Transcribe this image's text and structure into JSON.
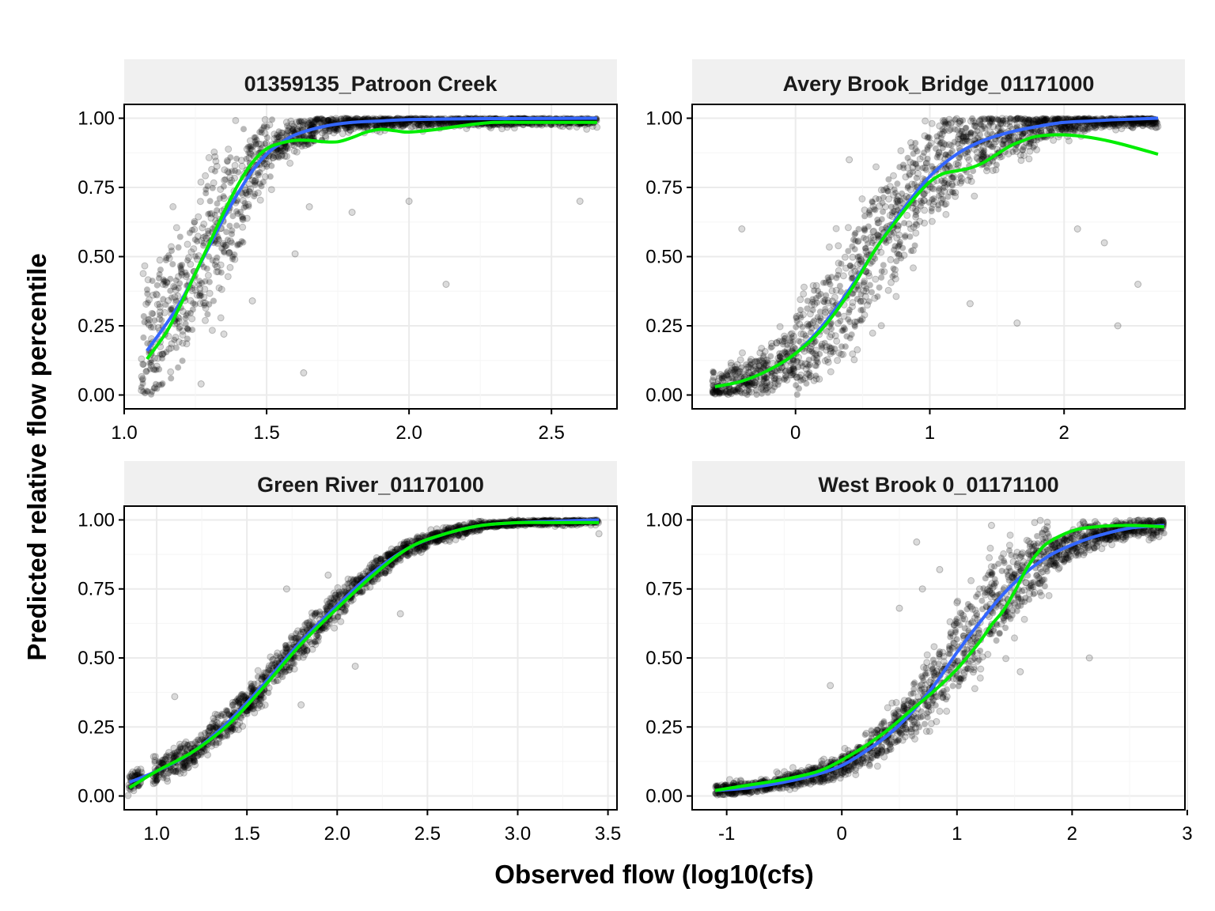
{
  "chart_data": {
    "type": "scatter",
    "xlabel": "Observed flow (log10(cfs)",
    "ylabel": "Predicted relative flow percentile",
    "colors": {
      "points": "#000000",
      "line_blue": "#3366FF",
      "line_green": "#00EE00",
      "strip_background": "#F0F0F0",
      "grid": "#EBEBEB"
    },
    "panels": [
      {
        "title": "01359135_Patroon Creek",
        "xlim": [
          1.0,
          2.73
        ],
        "ylim": [
          -0.05,
          1.05
        ],
        "x_ticks": [
          1.0,
          1.5,
          2.0,
          2.5
        ],
        "x_tick_labels": [
          "1.0",
          "1.5",
          "2.0",
          "2.5"
        ],
        "y_ticks": [
          0.0,
          0.25,
          0.5,
          0.75,
          1.0
        ],
        "y_tick_labels": [
          "0.00",
          "0.25",
          "0.50",
          "0.75",
          "1.00"
        ],
        "blue_line": {
          "x": [
            1.08,
            1.15,
            1.2,
            1.25,
            1.3,
            1.35,
            1.4,
            1.45,
            1.5,
            1.55,
            1.6,
            1.7,
            1.8,
            1.9,
            2.0,
            2.2,
            2.4,
            2.66
          ],
          "y": [
            0.16,
            0.26,
            0.34,
            0.44,
            0.54,
            0.64,
            0.73,
            0.81,
            0.87,
            0.91,
            0.94,
            0.97,
            0.985,
            0.99,
            0.995,
            0.998,
            0.999,
            1.0
          ]
        },
        "green_line": {
          "x": [
            1.08,
            1.15,
            1.2,
            1.25,
            1.3,
            1.35,
            1.4,
            1.45,
            1.5,
            1.55,
            1.6,
            1.65,
            1.7,
            1.75,
            1.8,
            1.85,
            1.9,
            1.95,
            2.0,
            2.1,
            2.2,
            2.3,
            2.4,
            2.5,
            2.66
          ],
          "y": [
            0.13,
            0.23,
            0.33,
            0.44,
            0.55,
            0.66,
            0.76,
            0.84,
            0.89,
            0.91,
            0.92,
            0.92,
            0.915,
            0.915,
            0.93,
            0.95,
            0.96,
            0.955,
            0.95,
            0.96,
            0.975,
            0.985,
            0.985,
            0.985,
            0.985
          ]
        },
        "scatter": {
          "bands": [
            [
              1.06,
              1.12,
              0.0,
              0.92
            ],
            [
              1.12,
              1.22,
              0.0,
              0.96
            ],
            [
              1.22,
              1.32,
              0.05,
              1.0
            ],
            [
              1.32,
              1.42,
              0.15,
              1.0
            ],
            [
              1.42,
              1.52,
              0.55,
              1.0
            ],
            [
              1.52,
              1.7,
              0.8,
              1.0
            ],
            [
              1.7,
              2.66,
              0.9,
              1.0
            ]
          ],
          "outliers": [
            [
              1.63,
              0.08
            ],
            [
              2.13,
              0.4
            ],
            [
              1.8,
              0.66
            ],
            [
              2.0,
              0.7
            ],
            [
              2.6,
              0.7
            ],
            [
              1.6,
              0.51
            ],
            [
              1.65,
              0.68
            ],
            [
              1.35,
              0.22
            ],
            [
              1.45,
              0.34
            ],
            [
              1.27,
              0.04
            ]
          ]
        }
      },
      {
        "title": "Avery Brook_Bridge_01171000",
        "xlim": [
          -0.77,
          2.9
        ],
        "ylim": [
          -0.05,
          1.05
        ],
        "x_ticks": [
          0,
          1,
          2
        ],
        "x_tick_labels": [
          "0",
          "1",
          "2"
        ],
        "y_ticks": [
          0.0,
          0.25,
          0.5,
          0.75,
          1.0
        ],
        "y_tick_labels": [
          "0.00",
          "0.25",
          "0.50",
          "0.75",
          "1.00"
        ],
        "blue_line": {
          "x": [
            -0.6,
            -0.4,
            -0.2,
            0.0,
            0.2,
            0.4,
            0.6,
            0.8,
            1.0,
            1.2,
            1.4,
            1.6,
            1.8,
            2.0,
            2.2,
            2.4,
            2.7
          ],
          "y": [
            0.03,
            0.05,
            0.09,
            0.15,
            0.25,
            0.38,
            0.53,
            0.67,
            0.79,
            0.87,
            0.92,
            0.95,
            0.97,
            0.985,
            0.99,
            0.995,
            1.0
          ]
        },
        "green_line": {
          "x": [
            -0.6,
            -0.4,
            -0.2,
            0.0,
            0.2,
            0.4,
            0.6,
            0.8,
            0.9,
            1.0,
            1.1,
            1.2,
            1.3,
            1.4,
            1.5,
            1.6,
            1.7,
            1.8,
            2.0,
            2.2,
            2.4,
            2.7
          ],
          "y": [
            0.03,
            0.05,
            0.09,
            0.15,
            0.24,
            0.37,
            0.53,
            0.66,
            0.72,
            0.77,
            0.8,
            0.81,
            0.82,
            0.84,
            0.87,
            0.9,
            0.92,
            0.935,
            0.94,
            0.93,
            0.91,
            0.87
          ]
        },
        "scatter": {
          "bands": [
            [
              -0.62,
              -0.3,
              0.0,
              0.25
            ],
            [
              -0.3,
              0.0,
              0.02,
              0.35
            ],
            [
              0.0,
              0.3,
              0.05,
              0.7
            ],
            [
              0.3,
              0.6,
              0.12,
              0.9
            ],
            [
              0.6,
              0.9,
              0.25,
              1.0
            ],
            [
              0.9,
              1.2,
              0.4,
              1.0
            ],
            [
              1.2,
              1.5,
              0.55,
              1.0
            ],
            [
              1.5,
              1.8,
              0.7,
              1.0
            ],
            [
              1.8,
              2.2,
              0.82,
              1.0
            ],
            [
              2.2,
              2.7,
              0.9,
              1.0
            ]
          ],
          "outliers": [
            [
              -0.4,
              0.6
            ],
            [
              1.65,
              0.26
            ],
            [
              2.3,
              0.55
            ],
            [
              2.4,
              0.25
            ],
            [
              1.3,
              0.33
            ],
            [
              2.1,
              0.6
            ],
            [
              0.4,
              0.85
            ],
            [
              2.55,
              0.4
            ]
          ]
        }
      },
      {
        "title": "Green River_01170100",
        "xlim": [
          0.82,
          3.55
        ],
        "ylim": [
          -0.05,
          1.05
        ],
        "x_ticks": [
          1.0,
          1.5,
          2.0,
          2.5,
          3.0,
          3.5
        ],
        "x_tick_labels": [
          "1.0",
          "1.5",
          "2.0",
          "2.5",
          "3.0",
          "3.5"
        ],
        "y_ticks": [
          0.0,
          0.25,
          0.5,
          0.75,
          1.0
        ],
        "y_tick_labels": [
          "0.00",
          "0.25",
          "0.50",
          "0.75",
          "1.00"
        ],
        "blue_line": {
          "x": [
            0.85,
            1.0,
            1.2,
            1.4,
            1.6,
            1.8,
            2.0,
            2.2,
            2.4,
            2.6,
            2.8,
            3.0,
            3.2,
            3.45
          ],
          "y": [
            0.05,
            0.09,
            0.16,
            0.27,
            0.41,
            0.56,
            0.69,
            0.81,
            0.9,
            0.95,
            0.98,
            0.99,
            0.995,
            1.0
          ]
        },
        "green_line": {
          "x": [
            0.85,
            1.0,
            1.2,
            1.4,
            1.6,
            1.8,
            2.0,
            2.2,
            2.4,
            2.6,
            2.8,
            3.0,
            3.2,
            3.45
          ],
          "y": [
            0.03,
            0.09,
            0.16,
            0.26,
            0.4,
            0.55,
            0.68,
            0.8,
            0.9,
            0.95,
            0.98,
            0.99,
            0.99,
            0.99
          ]
        },
        "scatter": {
          "bands": [
            [
              0.84,
              0.92,
              0.0,
              0.12
            ],
            [
              0.98,
              1.1,
              0.04,
              0.2
            ],
            [
              1.1,
              1.3,
              0.08,
              0.25
            ],
            [
              1.3,
              1.5,
              0.17,
              0.37
            ],
            [
              1.5,
              1.7,
              0.3,
              0.52
            ],
            [
              1.7,
              1.9,
              0.45,
              0.67
            ],
            [
              1.9,
              2.1,
              0.6,
              0.79
            ],
            [
              2.1,
              2.3,
              0.73,
              0.88
            ],
            [
              2.3,
              2.5,
              0.85,
              0.96
            ],
            [
              2.5,
              2.8,
              0.92,
              1.0
            ],
            [
              2.8,
              3.45,
              0.96,
              1.0
            ]
          ],
          "outliers": [
            [
              1.8,
              0.33
            ],
            [
              1.72,
              0.75
            ],
            [
              1.1,
              0.36
            ],
            [
              2.1,
              0.47
            ],
            [
              2.35,
              0.66
            ],
            [
              1.95,
              0.8
            ],
            [
              3.45,
              0.95
            ]
          ]
        }
      },
      {
        "title": "West Brook 0_01171100",
        "xlim": [
          -1.3,
          2.98
        ],
        "ylim": [
          -0.05,
          1.05
        ],
        "x_ticks": [
          -1,
          0,
          1,
          2,
          3
        ],
        "x_tick_labels": [
          "-1",
          "0",
          "1",
          "2",
          "3"
        ],
        "y_ticks": [
          0.0,
          0.25,
          0.5,
          0.75,
          1.0
        ],
        "y_tick_labels": [
          "0.00",
          "0.25",
          "0.50",
          "0.75",
          "1.00"
        ],
        "blue_line": {
          "x": [
            -1.1,
            -0.8,
            -0.5,
            -0.2,
            0.0,
            0.2,
            0.4,
            0.6,
            0.8,
            1.0,
            1.2,
            1.4,
            1.6,
            1.8,
            2.0,
            2.2,
            2.5,
            2.8
          ],
          "y": [
            0.02,
            0.03,
            0.05,
            0.08,
            0.11,
            0.16,
            0.22,
            0.3,
            0.4,
            0.52,
            0.63,
            0.73,
            0.81,
            0.87,
            0.91,
            0.94,
            0.97,
            0.98
          ]
        },
        "green_line": {
          "x": [
            -1.1,
            -0.8,
            -0.5,
            -0.2,
            0.0,
            0.2,
            0.4,
            0.6,
            0.8,
            1.0,
            1.2,
            1.3,
            1.4,
            1.5,
            1.6,
            1.7,
            1.8,
            2.0,
            2.2,
            2.5,
            2.8
          ],
          "y": [
            0.02,
            0.04,
            0.06,
            0.09,
            0.13,
            0.18,
            0.24,
            0.31,
            0.38,
            0.46,
            0.56,
            0.62,
            0.67,
            0.74,
            0.82,
            0.88,
            0.92,
            0.96,
            0.975,
            0.98,
            0.975
          ]
        },
        "scatter": {
          "bands": [
            [
              -1.1,
              -0.6,
              0.0,
              0.08
            ],
            [
              -0.6,
              -0.2,
              0.02,
              0.13
            ],
            [
              -0.2,
              0.2,
              0.05,
              0.2
            ],
            [
              0.2,
              0.6,
              0.1,
              0.35
            ],
            [
              0.6,
              0.9,
              0.2,
              0.6
            ],
            [
              0.9,
              1.2,
              0.3,
              0.85
            ],
            [
              1.2,
              1.5,
              0.4,
              0.97
            ],
            [
              1.5,
              1.8,
              0.55,
              1.0
            ],
            [
              1.8,
              2.2,
              0.8,
              1.0
            ],
            [
              2.2,
              2.8,
              0.88,
              1.0
            ]
          ],
          "outliers": [
            [
              0.65,
              0.92
            ],
            [
              0.7,
              0.75
            ],
            [
              1.0,
              0.7
            ],
            [
              2.15,
              0.5
            ],
            [
              -0.1,
              0.4
            ],
            [
              1.3,
              0.98
            ],
            [
              0.5,
              0.68
            ],
            [
              0.85,
              0.82
            ],
            [
              1.55,
              0.45
            ]
          ]
        }
      }
    ]
  }
}
